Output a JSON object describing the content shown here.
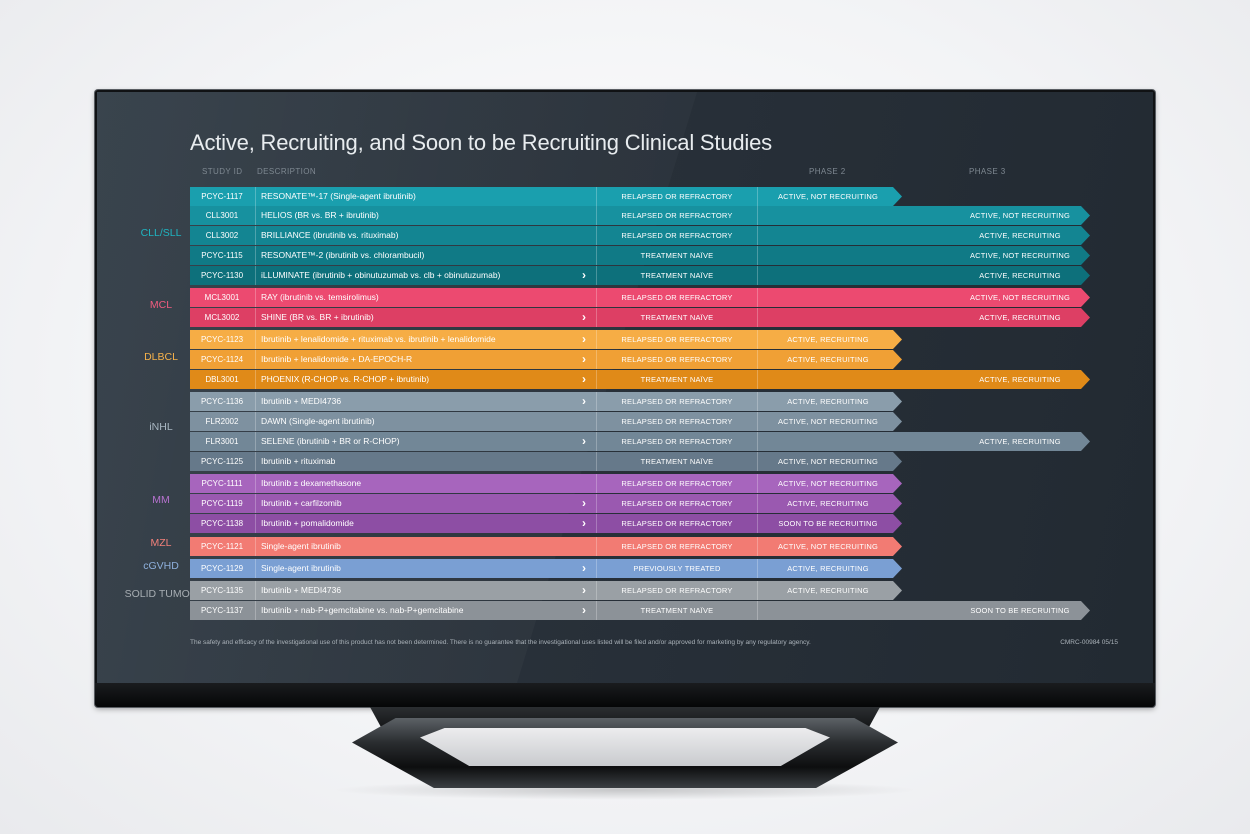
{
  "title": "Active, Recruiting, and Soon to be Recruiting Clinical Studies",
  "headers": {
    "study_id": "STUDY ID",
    "description": "DESCRIPTION",
    "phase2": "PHASE 2",
    "phase3": "PHASE 3"
  },
  "categories": [
    {
      "label": "CLL/SLL",
      "color": "#1fb4c0"
    },
    {
      "label": "MCL",
      "color": "#f05c7f"
    },
    {
      "label": "DLBCL",
      "color": "#f6b24a"
    },
    {
      "label": "iNHL",
      "color": "#a9b7c2"
    },
    {
      "label": "MM",
      "color": "#b672cf"
    },
    {
      "label": "MZL",
      "color": "#f3807a"
    },
    {
      "label": "cGVHD",
      "color": "#8eb0dd"
    },
    {
      "label": "SOLID TUMOR",
      "color": "#a7adb2"
    }
  ],
  "rows": [
    {
      "id": "PCYC-1117",
      "desc": "RESONATE™-17 (Single-agent ibrutinib)",
      "chev": "",
      "status": "RELAPSED OR REFRACTORY",
      "p2": "ACTIVE,  NOT RECRUITING",
      "p3": "",
      "color": "#1a9fae"
    },
    {
      "id": "CLL3001",
      "desc": "HELIOS (BR vs. BR + ibrutinib)",
      "chev": "",
      "status": "RELAPSED OR REFRACTORY",
      "p2": "",
      "p3": "ACTIVE, NOT RECRUITING",
      "color": "#17919f"
    },
    {
      "id": "CLL3002",
      "desc": "BRILLIANCE (ibrutinib vs. rituximab)",
      "chev": "",
      "status": "RELAPSED OR REFRACTORY",
      "p2": "",
      "p3": "ACTIVE, RECRUITING",
      "color": "#138592"
    },
    {
      "id": "PCYC-1115",
      "desc": "RESONATE™-2 (ibrutinib vs. chlorambucil)",
      "chev": "",
      "status": "TREATMENT NAÏVE",
      "p2": "",
      "p3": "ACTIVE, NOT RECRUITING",
      "color": "#107a86"
    },
    {
      "id": "PCYC-1130",
      "desc": "iLLUMINATE (ibrutinib + obinutuzumab vs. clb + obinutuzumab)",
      "chev": "›",
      "status": "TREATMENT NAÏVE",
      "p2": "",
      "p3": "ACTIVE, RECRUITING",
      "color": "#0d707b"
    },
    {
      "id": "MCL3001",
      "desc": "RAY (ibrutinib vs. temsirolimus)",
      "chev": "",
      "status": "RELAPSED OR REFRACTORY",
      "p2": "",
      "p3": "ACTIVE, NOT RECRUITING",
      "color": "#ec4a70"
    },
    {
      "id": "MCL3002",
      "desc": "SHINE (BR vs. BR + ibrutinib)",
      "chev": "›",
      "status": "TREATMENT NAÏVE",
      "p2": "",
      "p3": "ACTIVE, RECRUITING",
      "color": "#dd3f64"
    },
    {
      "id": "PCYC-1123",
      "desc": "Ibrutinib + lenalidomide + rituximab vs. ibrutinib + lenalidomide",
      "chev": "›",
      "status": "RELAPSED OR REFRACTORY",
      "p2": "ACTIVE, RECRUITING",
      "p3": "",
      "color": "#f6ad45"
    },
    {
      "id": "PCYC-1124",
      "desc": "Ibrutinib + lenalidomide + DA-EPOCH-R",
      "chev": "›",
      "status": "RELAPSED OR REFRACTORY",
      "p2": "ACTIVE, RECRUITING",
      "p3": "",
      "color": "#f0a035"
    },
    {
      "id": "DBL3001",
      "desc": "PHOENIX (R-CHOP vs. R-CHOP + ibrutinib)",
      "chev": "›",
      "status": "TREATMENT NAÏVE",
      "p2": "",
      "p3": "ACTIVE, RECRUITING",
      "color": "#e08a18"
    },
    {
      "id": "PCYC-1136",
      "desc": "Ibrutinib + MEDI4736",
      "chev": "›",
      "status": "RELAPSED OR REFRACTORY",
      "p2": "ACTIVE, RECRUITING",
      "p3": "",
      "color": "#8a9dab"
    },
    {
      "id": "FLR2002",
      "desc": "DAWN (Single-agent ibrutinib)",
      "chev": "",
      "status": "RELAPSED OR REFRACTORY",
      "p2": "ACTIVE, NOT RECRUITING",
      "p3": "",
      "color": "#7e91a0"
    },
    {
      "id": "FLR3001",
      "desc": "SELENE (ibrutinib + BR or R-CHOP)",
      "chev": "›",
      "status": "RELAPSED OR REFRACTORY",
      "p2": "",
      "p3": "ACTIVE, RECRUITING",
      "color": "#728797"
    },
    {
      "id": "PCYC-1125",
      "desc": "Ibrutinib + rituximab",
      "chev": "",
      "status": "TREATMENT NAÏVE",
      "p2": "ACTIVE, NOT RECRUITING",
      "p3": "",
      "color": "#66798a"
    },
    {
      "id": "PCYC-1111",
      "desc": "Ibrutinib ± dexamethasone",
      "chev": "",
      "status": "RELAPSED OR REFRACTORY",
      "p2": "ACTIVE, NOT RECRUITING",
      "p3": "",
      "color": "#a765bd"
    },
    {
      "id": "PCYC-1119",
      "desc": "Ibrutinib + carfilzomib",
      "chev": "›",
      "status": "RELAPSED OR REFRACTORY",
      "p2": "ACTIVE, RECRUITING",
      "p3": "",
      "color": "#9a59b0"
    },
    {
      "id": "PCYC-1138",
      "desc": "Ibrutinib + pomalidomide",
      "chev": "›",
      "status": "RELAPSED OR REFRACTORY",
      "p2": "SOON TO BE RECRUITING",
      "p3": "",
      "color": "#8d4ea4"
    },
    {
      "id": "PCYC-1121",
      "desc": "Single-agent ibrutinib",
      "chev": "",
      "status": "RELAPSED OR REFRACTORY",
      "p2": "ACTIVE, NOT RECRUITING",
      "p3": "",
      "color": "#f27b73"
    },
    {
      "id": "PCYC-1129",
      "desc": "Single-agent ibrutinib",
      "chev": "›",
      "status": "PREVIOUSLY TREATED",
      "p2": "ACTIVE, RECRUITING",
      "p3": "",
      "color": "#7a9fd3"
    },
    {
      "id": "PCYC-1135",
      "desc": "Ibrutinib + MEDI4736",
      "chev": "›",
      "status": "RELAPSED OR REFRACTORY",
      "p2": "ACTIVE, RECRUITING",
      "p3": "",
      "color": "#9aa0a5"
    },
    {
      "id": "PCYC-1137",
      "desc": "Ibrutinib + nab-P+gemcitabine vs. nab-P+gemcitabine",
      "chev": "›",
      "status": "TREATMENT NAÏVE",
      "p2": "",
      "p3": "SOON TO BE RECRUITING",
      "color": "#8c9298"
    }
  ],
  "footer": "The safety and efficacy of the investigational use of this product has not been determined. There is no guarantee that the investigational uses listed will be filed and/or approved for marketing by any regulatory agency.",
  "footer_code": "CMRC-00984 05/15"
}
